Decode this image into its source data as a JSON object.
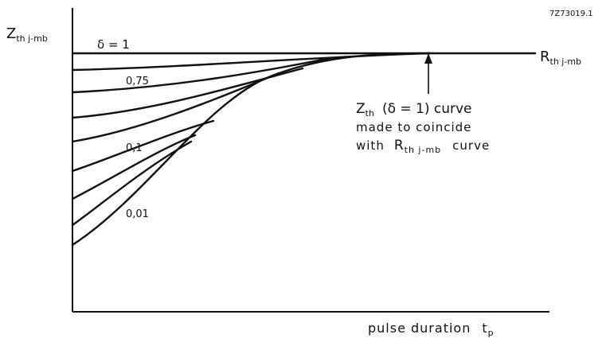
{
  "figure_code": "7Z73019.1",
  "y_axis_label": {
    "main": "Z",
    "sub": "th j-mb"
  },
  "x_axis_label": {
    "text": "pulse duration",
    "symbol": "t",
    "sub": "p"
  },
  "line_label": {
    "main": "R",
    "sub": "th j-mb"
  },
  "curve_labels": [
    "δ = 1",
    "0,75",
    "0,1",
    "0,01"
  ],
  "note": {
    "line1": {
      "main": "Z",
      "sub": "th",
      "rest": "(δ = 1) curve"
    },
    "line2": "made to coincide",
    "line3": {
      "pre": "with",
      "main": "R",
      "sub": "th j-mb",
      "rest": "curve"
    }
  }
}
